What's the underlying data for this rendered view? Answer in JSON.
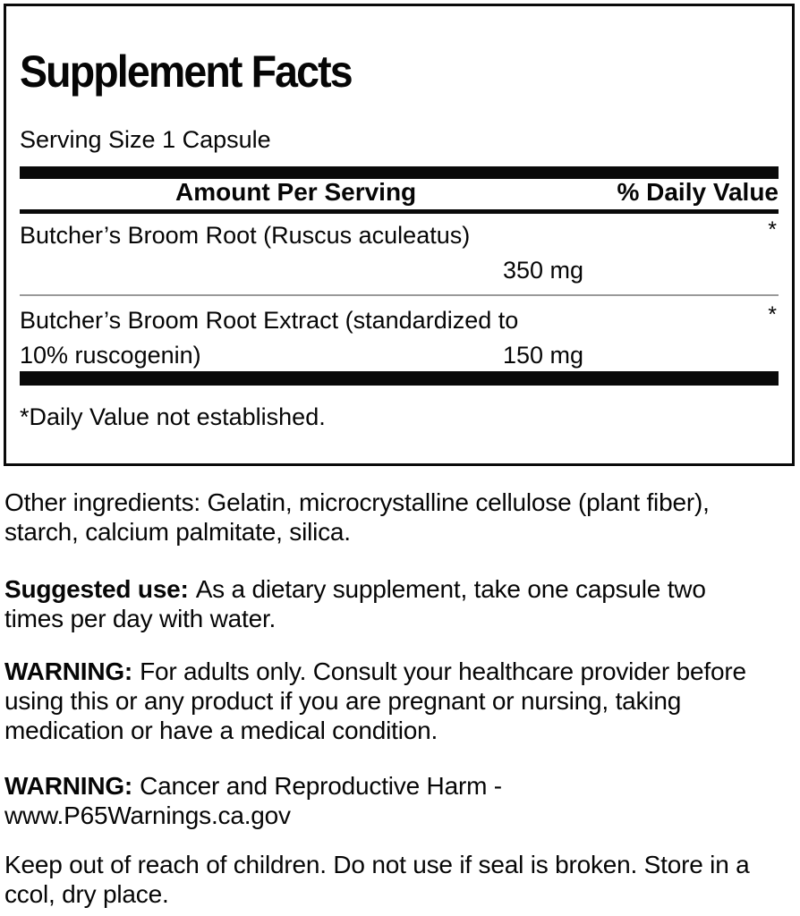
{
  "panel": {
    "title": "Supplement Facts",
    "serving_size": "Serving Size 1 Capsule",
    "header": {
      "amount_label": "Amount Per Serving",
      "dv_label": "% Daily Value"
    },
    "rows": [
      {
        "name": "Butcher’s Broom Root (Ruscus aculeatus)",
        "name2": "",
        "amount": "350 mg",
        "dv": "*"
      },
      {
        "name": "Butcher’s Broom Root Extract (standardized to",
        "name2": "10% ruscogenin)",
        "amount": "150 mg",
        "dv": "*"
      }
    ],
    "footnote": "*Daily Value not established."
  },
  "info": {
    "other_ingredients": "Other ingredients: Gelatin, microcrystalline cellulose (plant fiber), starch, calcium palmitate, silica.",
    "suggested_use": {
      "label": "Suggested use:",
      "text": "As a dietary supplement, take one capsule two times per day with water."
    },
    "warning_adults": {
      "label": "WARNING:",
      "text": "For adults only. Consult your healthcare provider before using this or any product if you are pregnant or nursing, taking medication or have a medical condition."
    },
    "warning_p65": {
      "label": "WARNING:",
      "text": "Cancer and Reproductive Harm - www.P65Warnings.ca.gov"
    },
    "storage": "Keep out of reach of children. Do not use if seal is broken. Store in a ccol, dry place."
  },
  "colors": {
    "text": "#060606",
    "bar": "#0a0a0a",
    "divider": "#999999",
    "background": "#ffffff"
  }
}
